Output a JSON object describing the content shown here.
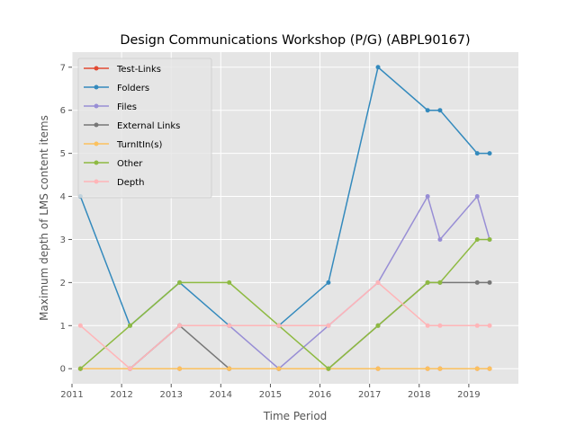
{
  "chart_data": {
    "type": "line",
    "title": "Design Communications Workshop (P/G) (ABPL90167)",
    "xlabel": "Time Period",
    "ylabel": "Maximum depth of LMS content items",
    "xlim": [
      2011,
      2020
    ],
    "ylim": [
      -0.35,
      7.35
    ],
    "xticks": [
      2011,
      2012,
      2013,
      2014,
      2015,
      2016,
      2017,
      2018,
      2019
    ],
    "yticks": [
      0,
      1,
      2,
      3,
      4,
      5,
      6,
      7
    ],
    "grid": true,
    "legend_position": "upper-left",
    "x": [
      2011.17,
      2012.17,
      2013.17,
      2014.17,
      2015.17,
      2016.17,
      2017.17,
      2018.17,
      2018.42,
      2019.17,
      2019.42
    ],
    "series": [
      {
        "name": "Test-Links",
        "color": "#E24A33",
        "values": [
          0,
          0,
          0,
          0,
          0,
          0,
          0,
          0,
          0,
          0,
          0
        ]
      },
      {
        "name": "Folders",
        "color": "#348ABD",
        "values": [
          4,
          1,
          2,
          1,
          1,
          2,
          7,
          6,
          6,
          5,
          5
        ]
      },
      {
        "name": "Files",
        "color": "#988ED5",
        "values": [
          0,
          0,
          1,
          1,
          0,
          1,
          2,
          4,
          3,
          4,
          3
        ]
      },
      {
        "name": "External Links",
        "color": "#777777",
        "values": [
          0,
          0,
          1,
          0,
          0,
          0,
          1,
          2,
          2,
          2,
          2
        ]
      },
      {
        "name": "TurnItIn(s)",
        "color": "#FBC15E",
        "values": [
          0,
          0,
          0,
          0,
          0,
          0,
          0,
          0,
          0,
          0,
          0
        ]
      },
      {
        "name": "Other",
        "color": "#8EBA42",
        "values": [
          0,
          1,
          2,
          2,
          1,
          0,
          1,
          2,
          2,
          3,
          3
        ]
      },
      {
        "name": "Depth",
        "color": "#FFB5B8",
        "values": [
          1,
          0,
          1,
          1,
          1,
          1,
          2,
          1,
          1,
          1,
          1
        ]
      }
    ]
  }
}
